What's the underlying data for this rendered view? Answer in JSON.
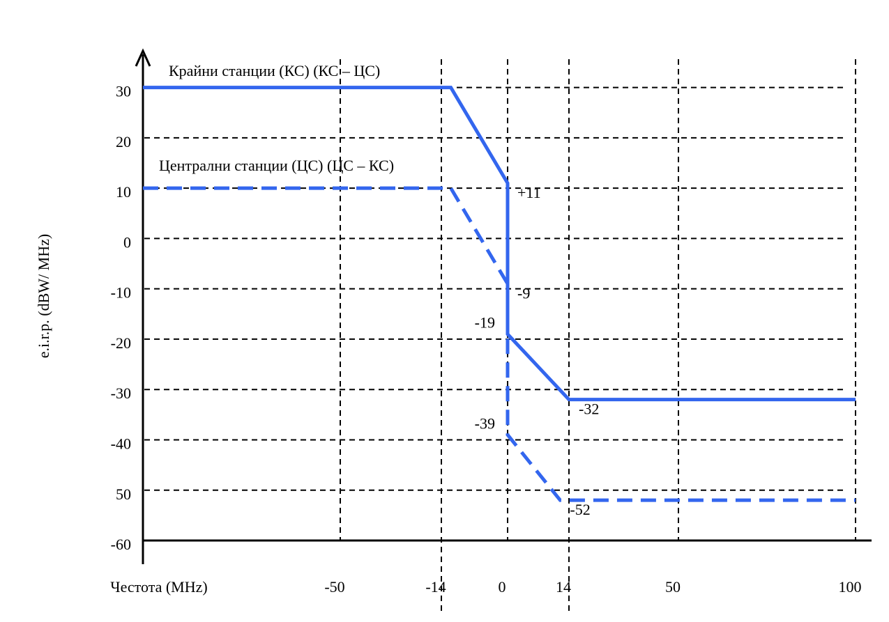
{
  "chart_data": {
    "type": "line",
    "x_label": "Честота (MHz)",
    "y_label": "e.i.r.p. (dBW/ MHz)",
    "xlim": [
      -120,
      105
    ],
    "xticks": [
      -50,
      -14,
      0,
      14,
      50,
      100
    ],
    "ylim": [
      -60,
      37
    ],
    "yticks": [
      30,
      20,
      10,
      0,
      -10,
      -20,
      -30,
      -40,
      {
        "value": -50,
        "label": "50"
      },
      -60
    ],
    "grid": true,
    "series": [
      {
        "name": "Крайни станции (КС) (КС – ЦС)",
        "color": "#3366ee",
        "dash": false,
        "x": [
          -120,
          -12,
          0,
          0,
          14,
          100
        ],
        "values": [
          30,
          30,
          11,
          -19,
          -32,
          -32
        ],
        "value_labels": [
          null,
          null,
          "+11",
          "-19",
          "-32",
          null
        ]
      },
      {
        "name": "Централни станции (ЦС) (ЦС – КС)",
        "color": "#3366ee",
        "dash": true,
        "x": [
          -120,
          -12,
          0,
          0,
          12,
          100
        ],
        "values": [
          10,
          10,
          -9,
          -39,
          -52,
          -52
        ],
        "value_labels": [
          null,
          null,
          "-9",
          "-39",
          "-52",
          null
        ]
      }
    ]
  }
}
